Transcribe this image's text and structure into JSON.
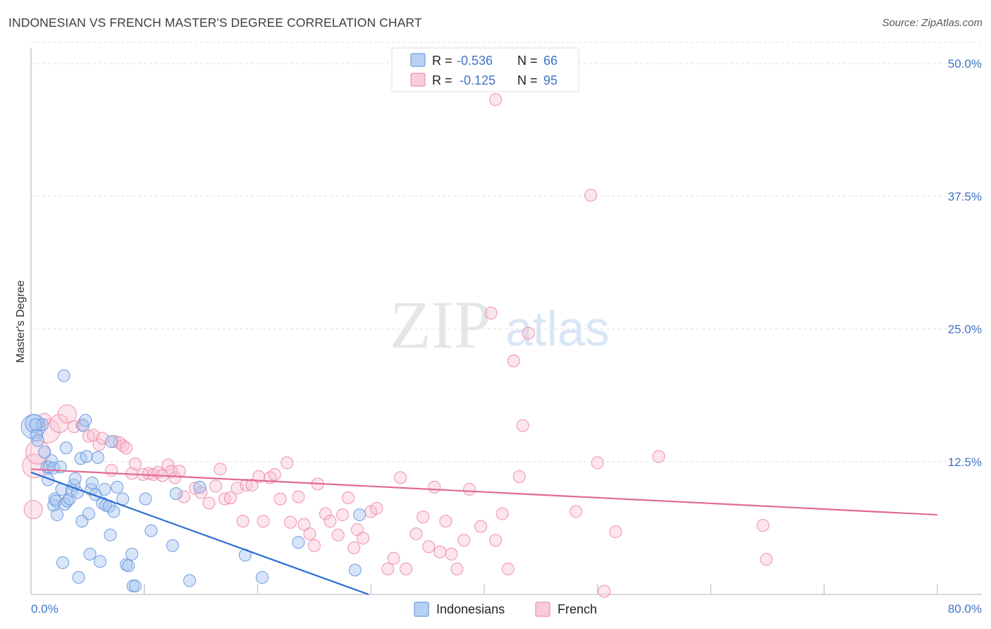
{
  "title": "INDONESIAN VS FRENCH MASTER'S DEGREE CORRELATION CHART",
  "source": "Source: ZipAtlas.com",
  "colors": {
    "indonesians": "#6d9be0",
    "french": "#ef8fb0",
    "indonesians_line": "#2b6fd1",
    "french_line": "#e06a95",
    "axis_text": "#3f75c5"
  },
  "legend": {
    "series": [
      {
        "name": "Indonesians",
        "r_label": "R =",
        "r_value": "-0.536",
        "n_label": "N =",
        "n_value": "66"
      },
      {
        "name": "French",
        "r_label": "R =",
        "r_value": "-0.125",
        "n_label": "N =",
        "n_value": "95"
      }
    ]
  },
  "watermark": {
    "zip": "ZIP",
    "atlas": "atlas"
  },
  "chart_data": {
    "type": "scatter",
    "title": "INDONESIAN VS FRENCH MASTER'S DEGREE CORRELATION CHART",
    "xlabel": "",
    "ylabel": "Master's Degree",
    "xlim": [
      0,
      80
    ],
    "ylim": [
      0,
      52
    ],
    "x_tick_labels": [
      "0.0%",
      "80.0%"
    ],
    "y_tick_labels": [
      "12.5%",
      "25.0%",
      "37.5%",
      "50.0%"
    ],
    "y_ticks": [
      12.5,
      25.0,
      37.5,
      50.0
    ],
    "series": [
      {
        "name": "Indonesians",
        "r": -0.536,
        "n": 66,
        "trend": {
          "x": [
            0,
            29.8
          ],
          "y": [
            11.5,
            0
          ]
        },
        "points": [
          [
            0.2,
            15.8,
            3
          ],
          [
            0.3,
            16.1,
            2
          ],
          [
            0.5,
            15.0,
            1
          ],
          [
            0.6,
            14.5,
            1
          ],
          [
            1.0,
            16.0,
            1
          ],
          [
            1.2,
            13.4,
            1
          ],
          [
            1.4,
            12.0,
            1
          ],
          [
            1.5,
            10.8,
            1
          ],
          [
            1.6,
            12.0,
            1
          ],
          [
            1.8,
            12.6,
            1
          ],
          [
            2.0,
            11.9,
            1
          ],
          [
            2.0,
            8.4,
            1
          ],
          [
            2.1,
            9.0,
            1
          ],
          [
            2.2,
            8.8,
            1
          ],
          [
            2.3,
            7.5,
            1
          ],
          [
            2.6,
            12.0,
            1
          ],
          [
            2.7,
            9.9,
            1
          ],
          [
            2.8,
            3.0,
            1
          ],
          [
            3.0,
            8.5,
            1
          ],
          [
            3.1,
            13.8,
            1
          ],
          [
            3.2,
            8.8,
            1
          ],
          [
            3.4,
            9.0,
            1
          ],
          [
            3.6,
            9.8,
            1
          ],
          [
            3.8,
            10.3,
            1
          ],
          [
            3.9,
            10.9,
            1
          ],
          [
            4.1,
            9.6,
            1
          ],
          [
            4.2,
            1.6,
            1
          ],
          [
            4.4,
            12.8,
            1
          ],
          [
            4.5,
            6.9,
            1
          ],
          [
            4.6,
            15.9,
            1
          ],
          [
            4.8,
            16.4,
            1
          ],
          [
            4.9,
            13.0,
            1
          ],
          [
            5.1,
            7.6,
            1
          ],
          [
            5.2,
            3.8,
            1
          ],
          [
            5.3,
            9.9,
            1
          ],
          [
            5.4,
            10.5,
            1
          ],
          [
            5.7,
            9.4,
            1
          ],
          [
            5.9,
            12.9,
            1
          ],
          [
            6.1,
            3.1,
            1
          ],
          [
            6.3,
            8.6,
            1
          ],
          [
            6.5,
            9.9,
            1
          ],
          [
            6.6,
            8.4,
            1
          ],
          [
            6.9,
            8.3,
            1
          ],
          [
            7.0,
            5.6,
            1
          ],
          [
            7.1,
            14.4,
            1
          ],
          [
            7.3,
            7.8,
            1
          ],
          [
            7.6,
            10.1,
            1
          ],
          [
            8.1,
            9.0,
            1
          ],
          [
            8.4,
            2.8,
            1
          ],
          [
            8.6,
            2.7,
            1
          ],
          [
            8.9,
            3.8,
            1
          ],
          [
            9.0,
            0.8,
            1
          ],
          [
            9.2,
            0.8,
            1
          ],
          [
            10.1,
            9.0,
            1
          ],
          [
            10.6,
            6.0,
            1
          ],
          [
            12.5,
            4.6,
            1
          ],
          [
            12.8,
            9.5,
            1
          ],
          [
            14.0,
            1.3,
            1
          ],
          [
            14.9,
            10.1,
            1
          ],
          [
            18.9,
            3.7,
            1
          ],
          [
            20.4,
            1.6,
            1
          ],
          [
            23.6,
            4.9,
            1
          ],
          [
            28.6,
            2.3,
            1
          ],
          [
            29.0,
            7.5,
            1
          ],
          [
            2.9,
            20.6,
            1
          ],
          [
            0.4,
            16.0,
            1
          ]
        ]
      },
      {
        "name": "French",
        "r": -0.125,
        "n": 95,
        "trend": {
          "x": [
            0,
            80
          ],
          "y": [
            11.8,
            7.5
          ]
        },
        "points": [
          [
            0.2,
            8.0,
            2
          ],
          [
            0.3,
            12.1,
            3
          ],
          [
            0.6,
            13.4,
            3
          ],
          [
            1.5,
            15.4,
            3
          ],
          [
            2.5,
            16.1,
            2
          ],
          [
            3.2,
            17.0,
            2
          ],
          [
            3.8,
            15.8,
            1
          ],
          [
            4.5,
            16.0,
            1
          ],
          [
            5.1,
            14.9,
            1
          ],
          [
            5.5,
            15.0,
            1
          ],
          [
            6.0,
            14.1,
            1
          ],
          [
            6.3,
            14.7,
            1
          ],
          [
            7.1,
            11.7,
            1
          ],
          [
            7.4,
            14.4,
            1
          ],
          [
            7.8,
            14.3,
            1
          ],
          [
            8.1,
            14.0,
            1
          ],
          [
            8.4,
            13.8,
            1
          ],
          [
            8.9,
            11.4,
            1
          ],
          [
            9.2,
            12.3,
            1
          ],
          [
            9.9,
            11.3,
            1
          ],
          [
            10.4,
            11.4,
            1
          ],
          [
            10.8,
            11.3,
            1
          ],
          [
            11.2,
            11.5,
            1
          ],
          [
            11.6,
            11.2,
            1
          ],
          [
            12.1,
            12.2,
            1
          ],
          [
            12.4,
            11.6,
            1
          ],
          [
            12.7,
            11.0,
            1
          ],
          [
            13.1,
            11.6,
            1
          ],
          [
            13.5,
            9.2,
            1
          ],
          [
            14.5,
            10.0,
            1
          ],
          [
            15.0,
            9.6,
            1
          ],
          [
            15.7,
            8.6,
            1
          ],
          [
            16.3,
            10.2,
            1
          ],
          [
            16.7,
            11.8,
            1
          ],
          [
            17.1,
            9.0,
            1
          ],
          [
            17.6,
            9.1,
            1
          ],
          [
            18.2,
            10.0,
            1
          ],
          [
            18.7,
            6.9,
            1
          ],
          [
            19.0,
            10.3,
            1
          ],
          [
            19.5,
            10.3,
            1
          ],
          [
            20.1,
            11.1,
            1
          ],
          [
            20.5,
            6.9,
            1
          ],
          [
            21.1,
            11.0,
            1
          ],
          [
            21.5,
            11.3,
            1
          ],
          [
            22.0,
            9.0,
            1
          ],
          [
            22.6,
            12.4,
            1
          ],
          [
            22.9,
            6.8,
            1
          ],
          [
            23.6,
            9.2,
            1
          ],
          [
            24.1,
            6.6,
            1
          ],
          [
            24.6,
            5.7,
            1
          ],
          [
            25.0,
            4.6,
            1
          ],
          [
            25.3,
            10.4,
            1
          ],
          [
            26.0,
            7.6,
            1
          ],
          [
            26.4,
            6.9,
            1
          ],
          [
            27.1,
            5.6,
            1
          ],
          [
            27.5,
            7.5,
            1
          ],
          [
            28.0,
            9.1,
            1
          ],
          [
            28.5,
            4.4,
            1
          ],
          [
            28.8,
            6.1,
            1
          ],
          [
            29.3,
            5.3,
            1
          ],
          [
            30.0,
            7.8,
            1
          ],
          [
            30.5,
            8.1,
            1
          ],
          [
            31.5,
            2.4,
            1
          ],
          [
            32.0,
            3.4,
            1
          ],
          [
            32.6,
            11.0,
            1
          ],
          [
            33.1,
            2.4,
            1
          ],
          [
            34.0,
            5.7,
            1
          ],
          [
            34.6,
            7.3,
            1
          ],
          [
            35.1,
            4.5,
            1
          ],
          [
            35.6,
            10.1,
            1
          ],
          [
            36.1,
            4.0,
            1
          ],
          [
            36.6,
            6.9,
            1
          ],
          [
            37.1,
            3.8,
            1
          ],
          [
            37.6,
            2.4,
            1
          ],
          [
            38.2,
            5.1,
            1
          ],
          [
            38.7,
            9.9,
            1
          ],
          [
            39.7,
            6.4,
            1
          ],
          [
            40.6,
            26.5,
            1
          ],
          [
            41.0,
            5.1,
            1
          ],
          [
            41.6,
            7.6,
            1
          ],
          [
            42.1,
            2.4,
            1
          ],
          [
            42.6,
            22.0,
            1
          ],
          [
            43.1,
            11.1,
            1
          ],
          [
            43.4,
            15.9,
            1
          ],
          [
            43.9,
            24.6,
            1
          ],
          [
            48.1,
            7.8,
            1
          ],
          [
            49.4,
            37.6,
            1
          ],
          [
            50.0,
            12.4,
            1
          ],
          [
            50.6,
            0.3,
            1
          ],
          [
            51.6,
            5.9,
            1
          ],
          [
            55.4,
            13.0,
            1
          ],
          [
            64.6,
            6.5,
            1
          ],
          [
            64.9,
            3.3,
            1
          ],
          [
            1.2,
            16.5,
            1
          ],
          [
            41.0,
            46.6,
            1
          ]
        ]
      }
    ]
  }
}
